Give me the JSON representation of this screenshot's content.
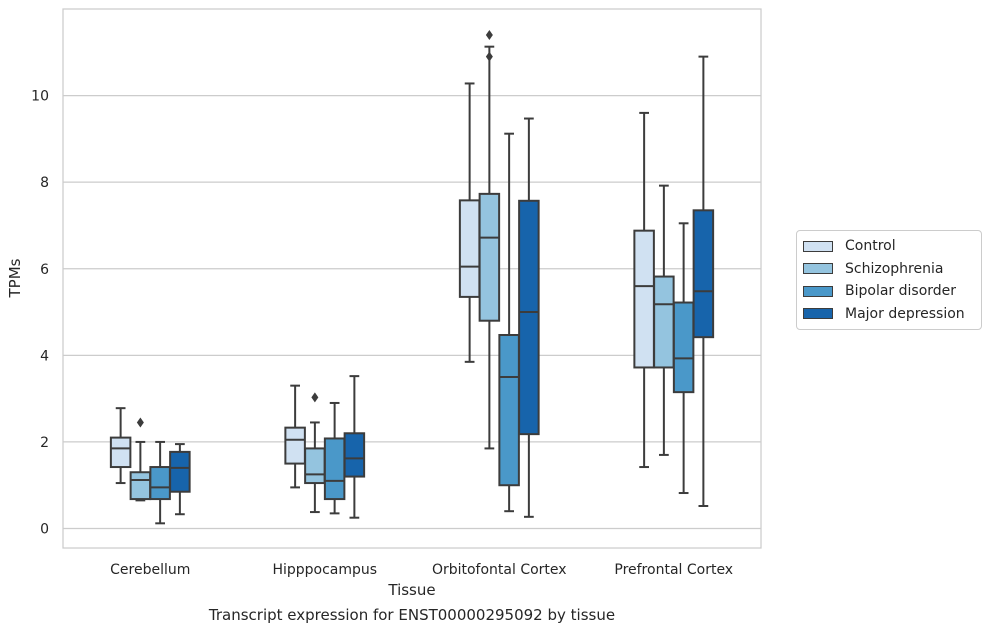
{
  "chart_data": {
    "type": "box",
    "title": "",
    "xlabel": "Tissue",
    "ylabel": "TPMs",
    "ylim": [
      -0.45,
      12.0
    ],
    "yticks": [
      0,
      2,
      4,
      6,
      8,
      10
    ],
    "grid": "horizontal",
    "legend_position": "right",
    "categories": [
      "Cerebellum",
      "Hipppocampus",
      "Orbitofontal Cortex",
      "Prefrontal Cortex"
    ],
    "series": [
      {
        "name": "Control",
        "color": "#d0e1f2",
        "boxes": [
          {
            "whislo": 1.05,
            "q1": 1.42,
            "med": 1.85,
            "q3": 2.1,
            "whishi": 2.78,
            "fliers": []
          },
          {
            "whislo": 0.95,
            "q1": 1.5,
            "med": 2.05,
            "q3": 2.33,
            "whishi": 3.3,
            "fliers": []
          },
          {
            "whislo": 3.85,
            "q1": 5.35,
            "med": 6.05,
            "q3": 7.58,
            "whishi": 10.28,
            "fliers": []
          },
          {
            "whislo": 1.42,
            "q1": 3.72,
            "med": 5.6,
            "q3": 6.88,
            "whishi": 9.6,
            "fliers": []
          }
        ]
      },
      {
        "name": "Schizophrenia",
        "color": "#94c4df",
        "boxes": [
          {
            "whislo": 0.65,
            "q1": 0.68,
            "med": 1.12,
            "q3": 1.3,
            "whishi": 2.0,
            "fliers": [
              2.45
            ]
          },
          {
            "whislo": 0.38,
            "q1": 1.05,
            "med": 1.25,
            "q3": 1.85,
            "whishi": 2.45,
            "fliers": [
              3.03
            ]
          },
          {
            "whislo": 1.85,
            "q1": 4.8,
            "med": 6.72,
            "q3": 7.73,
            "whishi": 11.13,
            "fliers": [
              10.9,
              11.4
            ]
          },
          {
            "whislo": 1.7,
            "q1": 3.72,
            "med": 5.18,
            "q3": 5.82,
            "whishi": 7.92,
            "fliers": []
          }
        ]
      },
      {
        "name": "Bipolar disorder",
        "color": "#4a98c9",
        "boxes": [
          {
            "whislo": 0.12,
            "q1": 0.68,
            "med": 0.95,
            "q3": 1.42,
            "whishi": 2.0,
            "fliers": []
          },
          {
            "whislo": 0.35,
            "q1": 0.68,
            "med": 1.1,
            "q3": 2.08,
            "whishi": 2.9,
            "fliers": []
          },
          {
            "whislo": 0.4,
            "q1": 1.0,
            "med": 3.5,
            "q3": 4.47,
            "whishi": 9.12,
            "fliers": []
          },
          {
            "whislo": 0.82,
            "q1": 3.15,
            "med": 3.93,
            "q3": 5.22,
            "whishi": 7.05,
            "fliers": []
          }
        ]
      },
      {
        "name": "Major depression",
        "color": "#1764ab",
        "boxes": [
          {
            "whislo": 0.33,
            "q1": 0.85,
            "med": 1.4,
            "q3": 1.77,
            "whishi": 1.95,
            "fliers": []
          },
          {
            "whislo": 0.25,
            "q1": 1.2,
            "med": 1.62,
            "q3": 2.2,
            "whishi": 3.52,
            "fliers": []
          },
          {
            "whislo": 0.27,
            "q1": 2.18,
            "med": 5.0,
            "q3": 7.57,
            "whishi": 9.47,
            "fliers": []
          },
          {
            "whislo": 0.52,
            "q1": 4.42,
            "med": 5.48,
            "q3": 7.35,
            "whishi": 10.9,
            "fliers": []
          }
        ]
      }
    ]
  },
  "caption": "Transcript expression for ENST00000295092 by tissue"
}
